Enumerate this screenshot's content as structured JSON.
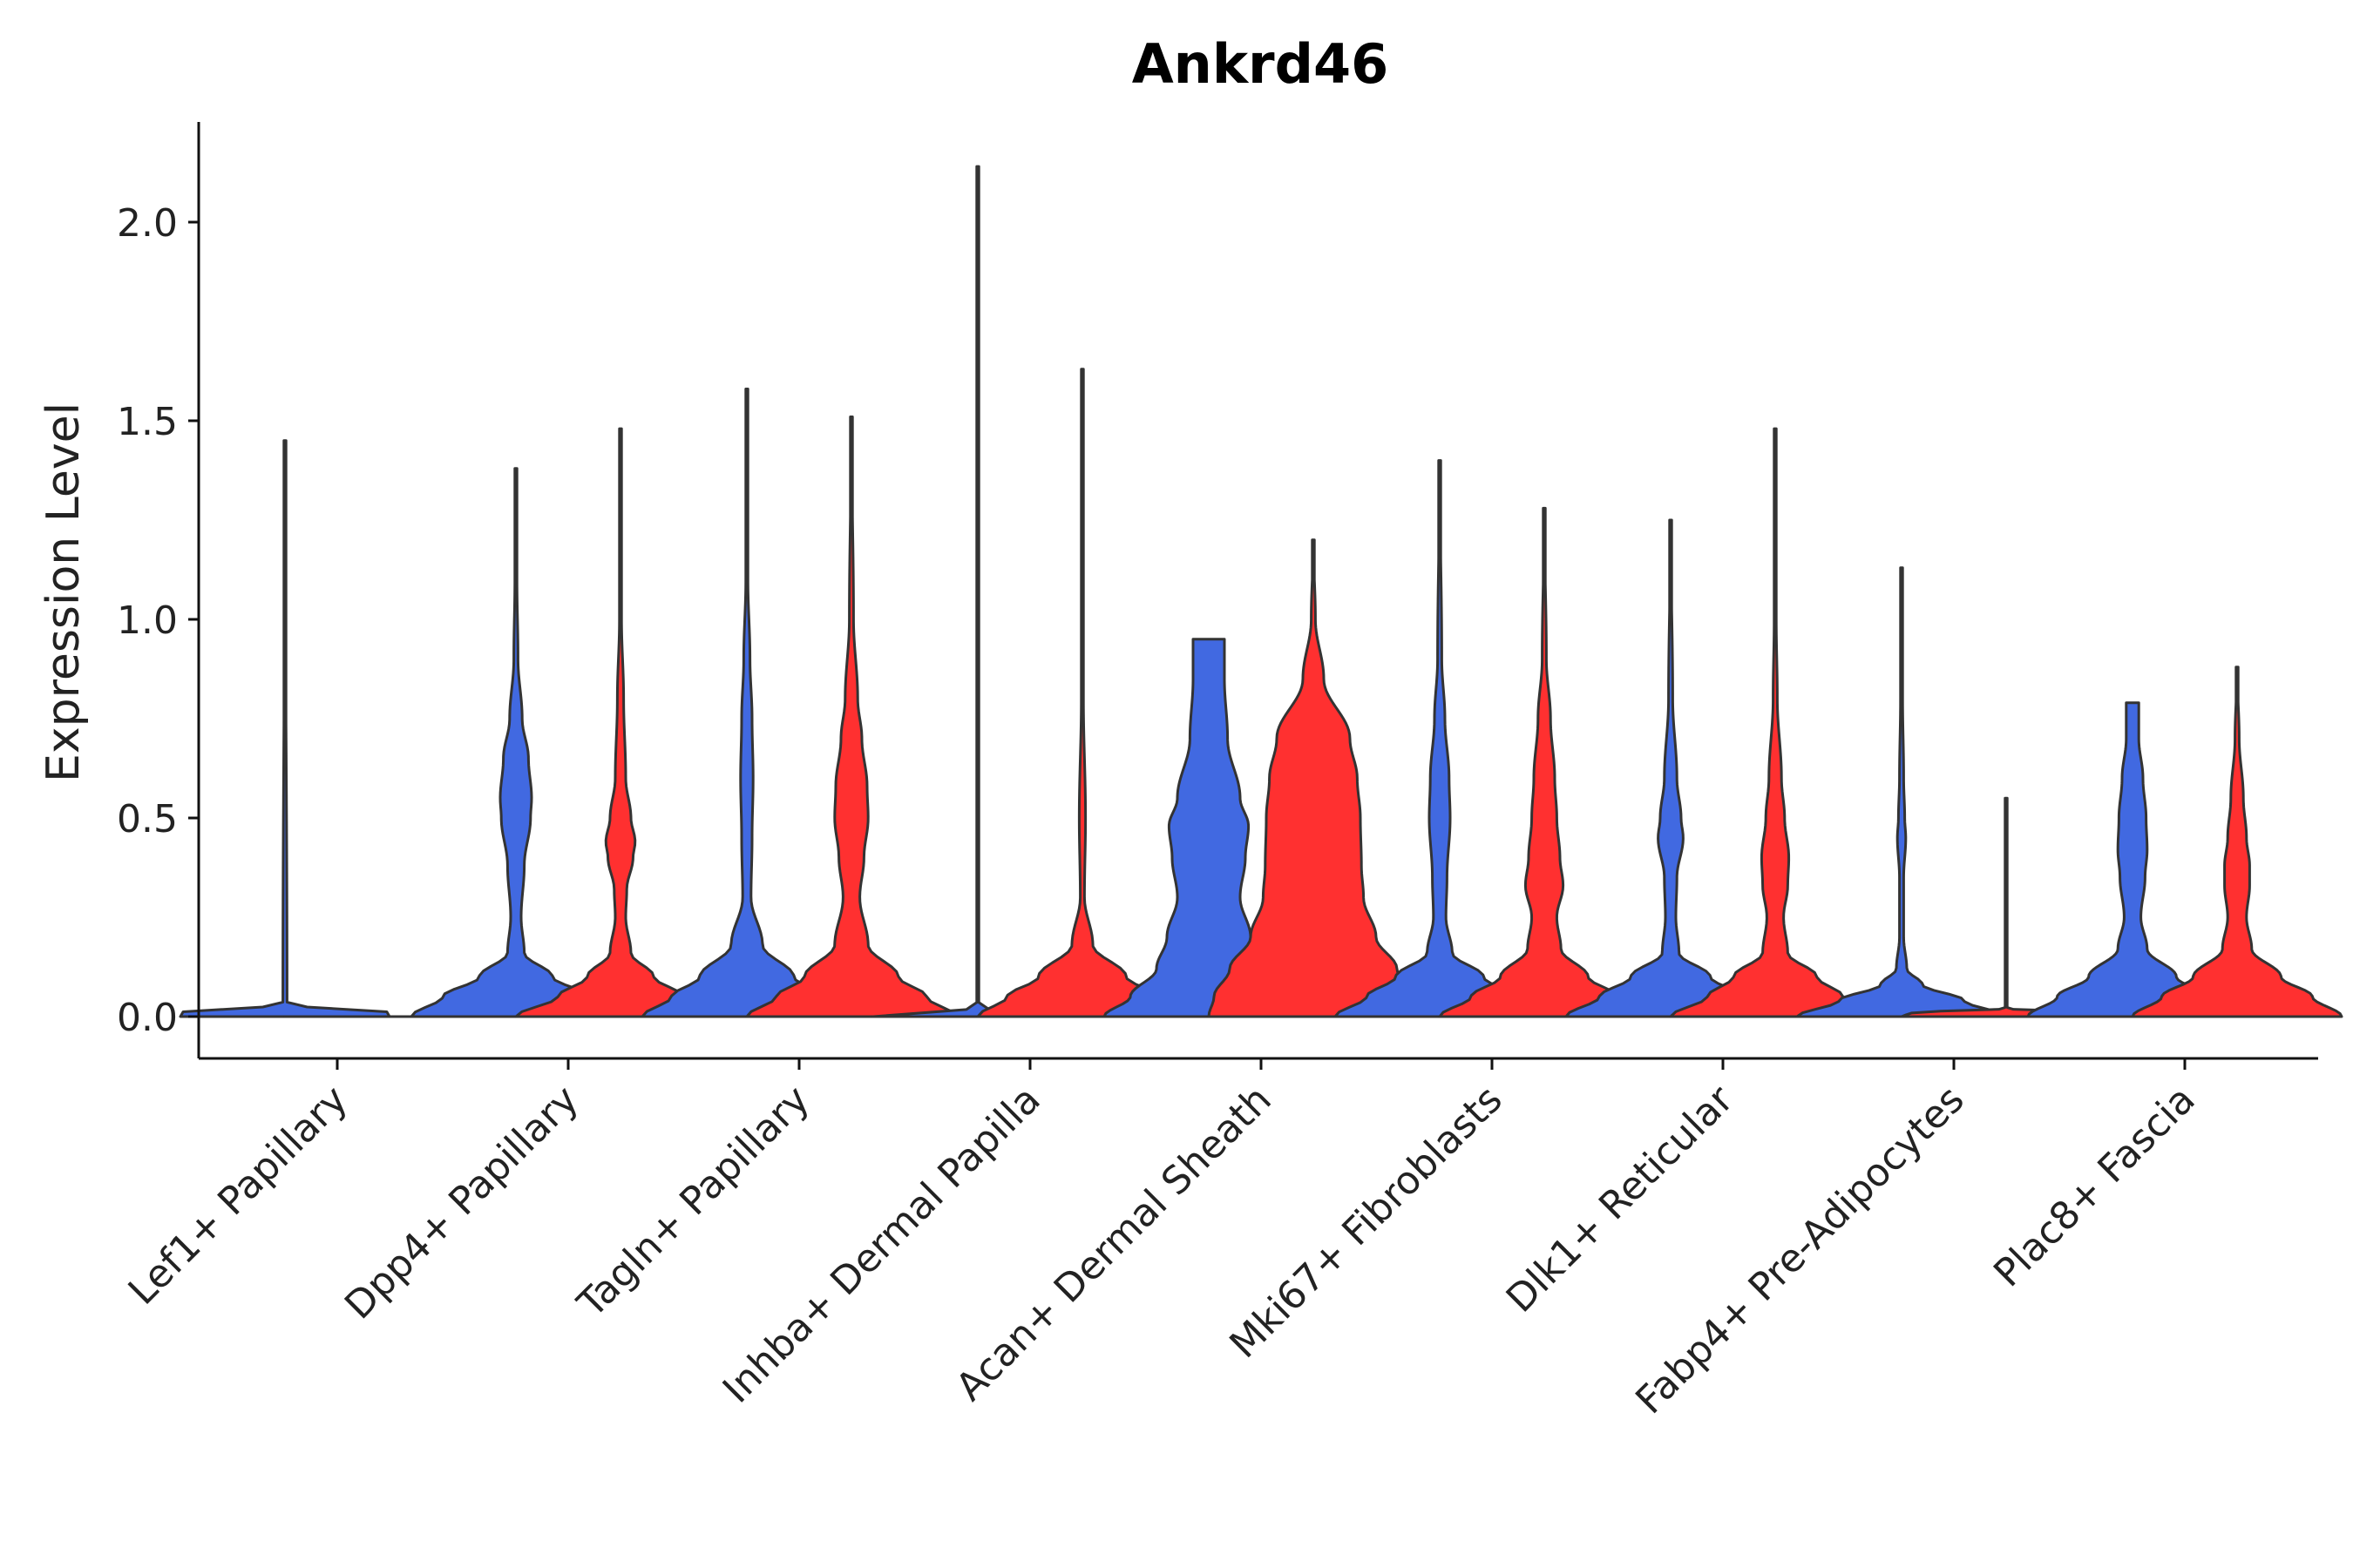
{
  "chart_data": {
    "type": "violin",
    "title": "Ankrd46",
    "xlabel": "",
    "ylabel": "Expression Level",
    "ylim": [
      -0.1,
      2.25
    ],
    "yticks": [
      0.0,
      0.5,
      1.0,
      1.5,
      2.0
    ],
    "ytick_labels": [
      "0.0",
      "0.5",
      "1.0",
      "1.5",
      "2.0"
    ],
    "grid": false,
    "legend": "none",
    "split_colors": {
      "left": "#4169E1",
      "right": "#FF3030"
    },
    "outline_color": "#333333",
    "categories": [
      {
        "label": "Lef1+ Papillary",
        "left": {
          "max": 1.45,
          "shape": [
            [
              0,
              1
            ],
            [
              0.01,
              1.0
            ],
            [
              0.03,
              0.02
            ],
            [
              1.45,
              0.0
            ]
          ]
        },
        "right": {
          "max": 0.0,
          "shape": [
            [
              0,
              1
            ],
            [
              0.01,
              0.9
            ],
            [
              0.02,
              0.0
            ]
          ]
        }
      },
      {
        "label": "Dpp4+ Papillary",
        "left": {
          "max": 1.38,
          "shape": [
            [
              0,
              1
            ],
            [
              0.05,
              0.7
            ],
            [
              0.1,
              0.35
            ],
            [
              0.16,
              0.08
            ],
            [
              0.25,
              0.05
            ],
            [
              0.38,
              0.08
            ],
            [
              0.5,
              0.14
            ],
            [
              0.55,
              0.15
            ],
            [
              0.65,
              0.12
            ],
            [
              0.75,
              0.06
            ],
            [
              0.9,
              0.02
            ],
            [
              1.1,
              0.01
            ],
            [
              1.38,
              0.0
            ]
          ]
        },
        "right": {
          "max": 1.48,
          "shape": [
            [
              0,
              1
            ],
            [
              0.05,
              0.6
            ],
            [
              0.1,
              0.32
            ],
            [
              0.16,
              0.1
            ],
            [
              0.25,
              0.05
            ],
            [
              0.32,
              0.06
            ],
            [
              0.4,
              0.12
            ],
            [
              0.44,
              0.14
            ],
            [
              0.5,
              0.1
            ],
            [
              0.6,
              0.05
            ],
            [
              0.8,
              0.03
            ],
            [
              1.0,
              0.01
            ],
            [
              1.48,
              0.0
            ]
          ]
        }
      },
      {
        "label": "Tagln+ Papillary",
        "left": {
          "max": 1.58,
          "shape": [
            [
              0,
              1
            ],
            [
              0.05,
              0.72
            ],
            [
              0.1,
              0.45
            ],
            [
              0.18,
              0.15
            ],
            [
              0.3,
              0.04
            ],
            [
              0.45,
              0.05
            ],
            [
              0.6,
              0.06
            ],
            [
              0.75,
              0.05
            ],
            [
              0.9,
              0.03
            ],
            [
              1.1,
              0.01
            ],
            [
              1.58,
              0.0
            ]
          ]
        },
        "right": {
          "max": 1.51,
          "shape": [
            [
              0,
              1
            ],
            [
              0.05,
              0.72
            ],
            [
              0.1,
              0.45
            ],
            [
              0.18,
              0.16
            ],
            [
              0.3,
              0.08
            ],
            [
              0.4,
              0.12
            ],
            [
              0.5,
              0.16
            ],
            [
              0.58,
              0.15
            ],
            [
              0.7,
              0.1
            ],
            [
              0.8,
              0.06
            ],
            [
              1.0,
              0.02
            ],
            [
              1.51,
              0.0
            ]
          ]
        }
      },
      {
        "label": "Inhba+ Dermal Papilla",
        "left": {
          "max": 2.14,
          "shape": [
            [
              0,
              1
            ],
            [
              0.01,
              0.9
            ],
            [
              0.02,
              0.01
            ],
            [
              2.14,
              0.0
            ]
          ]
        },
        "right": {
          "max": 1.63,
          "shape": [
            [
              0,
              1
            ],
            [
              0.05,
              0.72
            ],
            [
              0.1,
              0.42
            ],
            [
              0.18,
              0.1
            ],
            [
              0.3,
              0.02
            ],
            [
              0.5,
              0.03
            ],
            [
              0.8,
              0.01
            ],
            [
              1.63,
              0.0
            ]
          ]
        }
      },
      {
        "label": "Acan+ Dermal Sheath",
        "left": {
          "max": 0.95,
          "shape": [
            [
              0,
              1
            ],
            [
              0.05,
              0.75
            ],
            [
              0.12,
              0.5
            ],
            [
              0.2,
              0.4
            ],
            [
              0.3,
              0.3
            ],
            [
              0.4,
              0.35
            ],
            [
              0.48,
              0.38
            ],
            [
              0.55,
              0.3
            ],
            [
              0.7,
              0.18
            ],
            [
              0.85,
              0.15
            ],
            [
              0.95,
              0.15
            ]
          ]
        },
        "right": {
          "max": 1.2,
          "shape": [
            [
              0,
              1
            ],
            [
              0.05,
              0.95
            ],
            [
              0.12,
              0.8
            ],
            [
              0.2,
              0.6
            ],
            [
              0.3,
              0.48
            ],
            [
              0.38,
              0.46
            ],
            [
              0.5,
              0.45
            ],
            [
              0.6,
              0.42
            ],
            [
              0.7,
              0.35
            ],
            [
              0.85,
              0.1
            ],
            [
              1.0,
              0.02
            ],
            [
              1.2,
              0.0
            ]
          ]
        }
      },
      {
        "label": "Mki67+ Fibroblasts",
        "left": {
          "max": 1.4,
          "shape": [
            [
              0,
              1
            ],
            [
              0.05,
              0.7
            ],
            [
              0.1,
              0.42
            ],
            [
              0.16,
              0.12
            ],
            [
              0.25,
              0.06
            ],
            [
              0.35,
              0.07
            ],
            [
              0.5,
              0.1
            ],
            [
              0.6,
              0.09
            ],
            [
              0.75,
              0.05
            ],
            [
              0.9,
              0.02
            ],
            [
              1.4,
              0.0
            ]
          ]
        },
        "right": {
          "max": 1.28,
          "shape": [
            [
              0,
              1
            ],
            [
              0.05,
              0.7
            ],
            [
              0.1,
              0.42
            ],
            [
              0.17,
              0.16
            ],
            [
              0.25,
              0.12
            ],
            [
              0.33,
              0.18
            ],
            [
              0.4,
              0.15
            ],
            [
              0.5,
              0.12
            ],
            [
              0.6,
              0.1
            ],
            [
              0.75,
              0.06
            ],
            [
              0.9,
              0.02
            ],
            [
              1.28,
              0.0
            ]
          ]
        }
      },
      {
        "label": "Dlk1+ Reticular",
        "left": {
          "max": 1.25,
          "shape": [
            [
              0,
              1
            ],
            [
              0.05,
              0.68
            ],
            [
              0.1,
              0.38
            ],
            [
              0.16,
              0.08
            ],
            [
              0.25,
              0.05
            ],
            [
              0.35,
              0.06
            ],
            [
              0.45,
              0.12
            ],
            [
              0.5,
              0.1
            ],
            [
              0.6,
              0.06
            ],
            [
              0.8,
              0.02
            ],
            [
              1.25,
              0.0
            ]
          ]
        },
        "right": {
          "max": 1.48,
          "shape": [
            [
              0,
              1
            ],
            [
              0.05,
              0.65
            ],
            [
              0.1,
              0.4
            ],
            [
              0.16,
              0.12
            ],
            [
              0.25,
              0.08
            ],
            [
              0.33,
              0.12
            ],
            [
              0.4,
              0.13
            ],
            [
              0.5,
              0.09
            ],
            [
              0.6,
              0.06
            ],
            [
              0.8,
              0.02
            ],
            [
              1.0,
              0.01
            ],
            [
              1.48,
              0.0
            ]
          ]
        }
      },
      {
        "label": "Fabp4+ Pre-Adipocytes",
        "left": {
          "max": 1.13,
          "shape": [
            [
              0,
              1
            ],
            [
              0.04,
              0.6
            ],
            [
              0.08,
              0.2
            ],
            [
              0.12,
              0.05
            ],
            [
              0.2,
              0.02
            ],
            [
              0.35,
              0.02
            ],
            [
              0.45,
              0.04
            ],
            [
              0.5,
              0.03
            ],
            [
              0.6,
              0.02
            ],
            [
              0.8,
              0.01
            ],
            [
              1.13,
              0.0
            ]
          ]
        },
        "right": {
          "max": 0.55,
          "shape": [
            [
              0,
              1
            ],
            [
              0.01,
              0.9
            ],
            [
              0.02,
              0.01
            ],
            [
              0.55,
              0.0
            ]
          ]
        }
      },
      {
        "label": "Plac8+ Fascia",
        "left": {
          "max": 0.79,
          "shape": [
            [
              0,
              1
            ],
            [
              0.05,
              0.72
            ],
            [
              0.1,
              0.42
            ],
            [
              0.17,
              0.14
            ],
            [
              0.25,
              0.08
            ],
            [
              0.35,
              0.12
            ],
            [
              0.42,
              0.14
            ],
            [
              0.5,
              0.13
            ],
            [
              0.6,
              0.1
            ],
            [
              0.7,
              0.06
            ],
            [
              0.79,
              0.06
            ]
          ]
        },
        "right": {
          "max": 0.88,
          "shape": [
            [
              0,
              1
            ],
            [
              0.05,
              0.72
            ],
            [
              0.1,
              0.42
            ],
            [
              0.17,
              0.14
            ],
            [
              0.25,
              0.09
            ],
            [
              0.33,
              0.12
            ],
            [
              0.38,
              0.12
            ],
            [
              0.45,
              0.09
            ],
            [
              0.55,
              0.06
            ],
            [
              0.7,
              0.02
            ],
            [
              0.88,
              0.0
            ]
          ]
        }
      }
    ]
  }
}
